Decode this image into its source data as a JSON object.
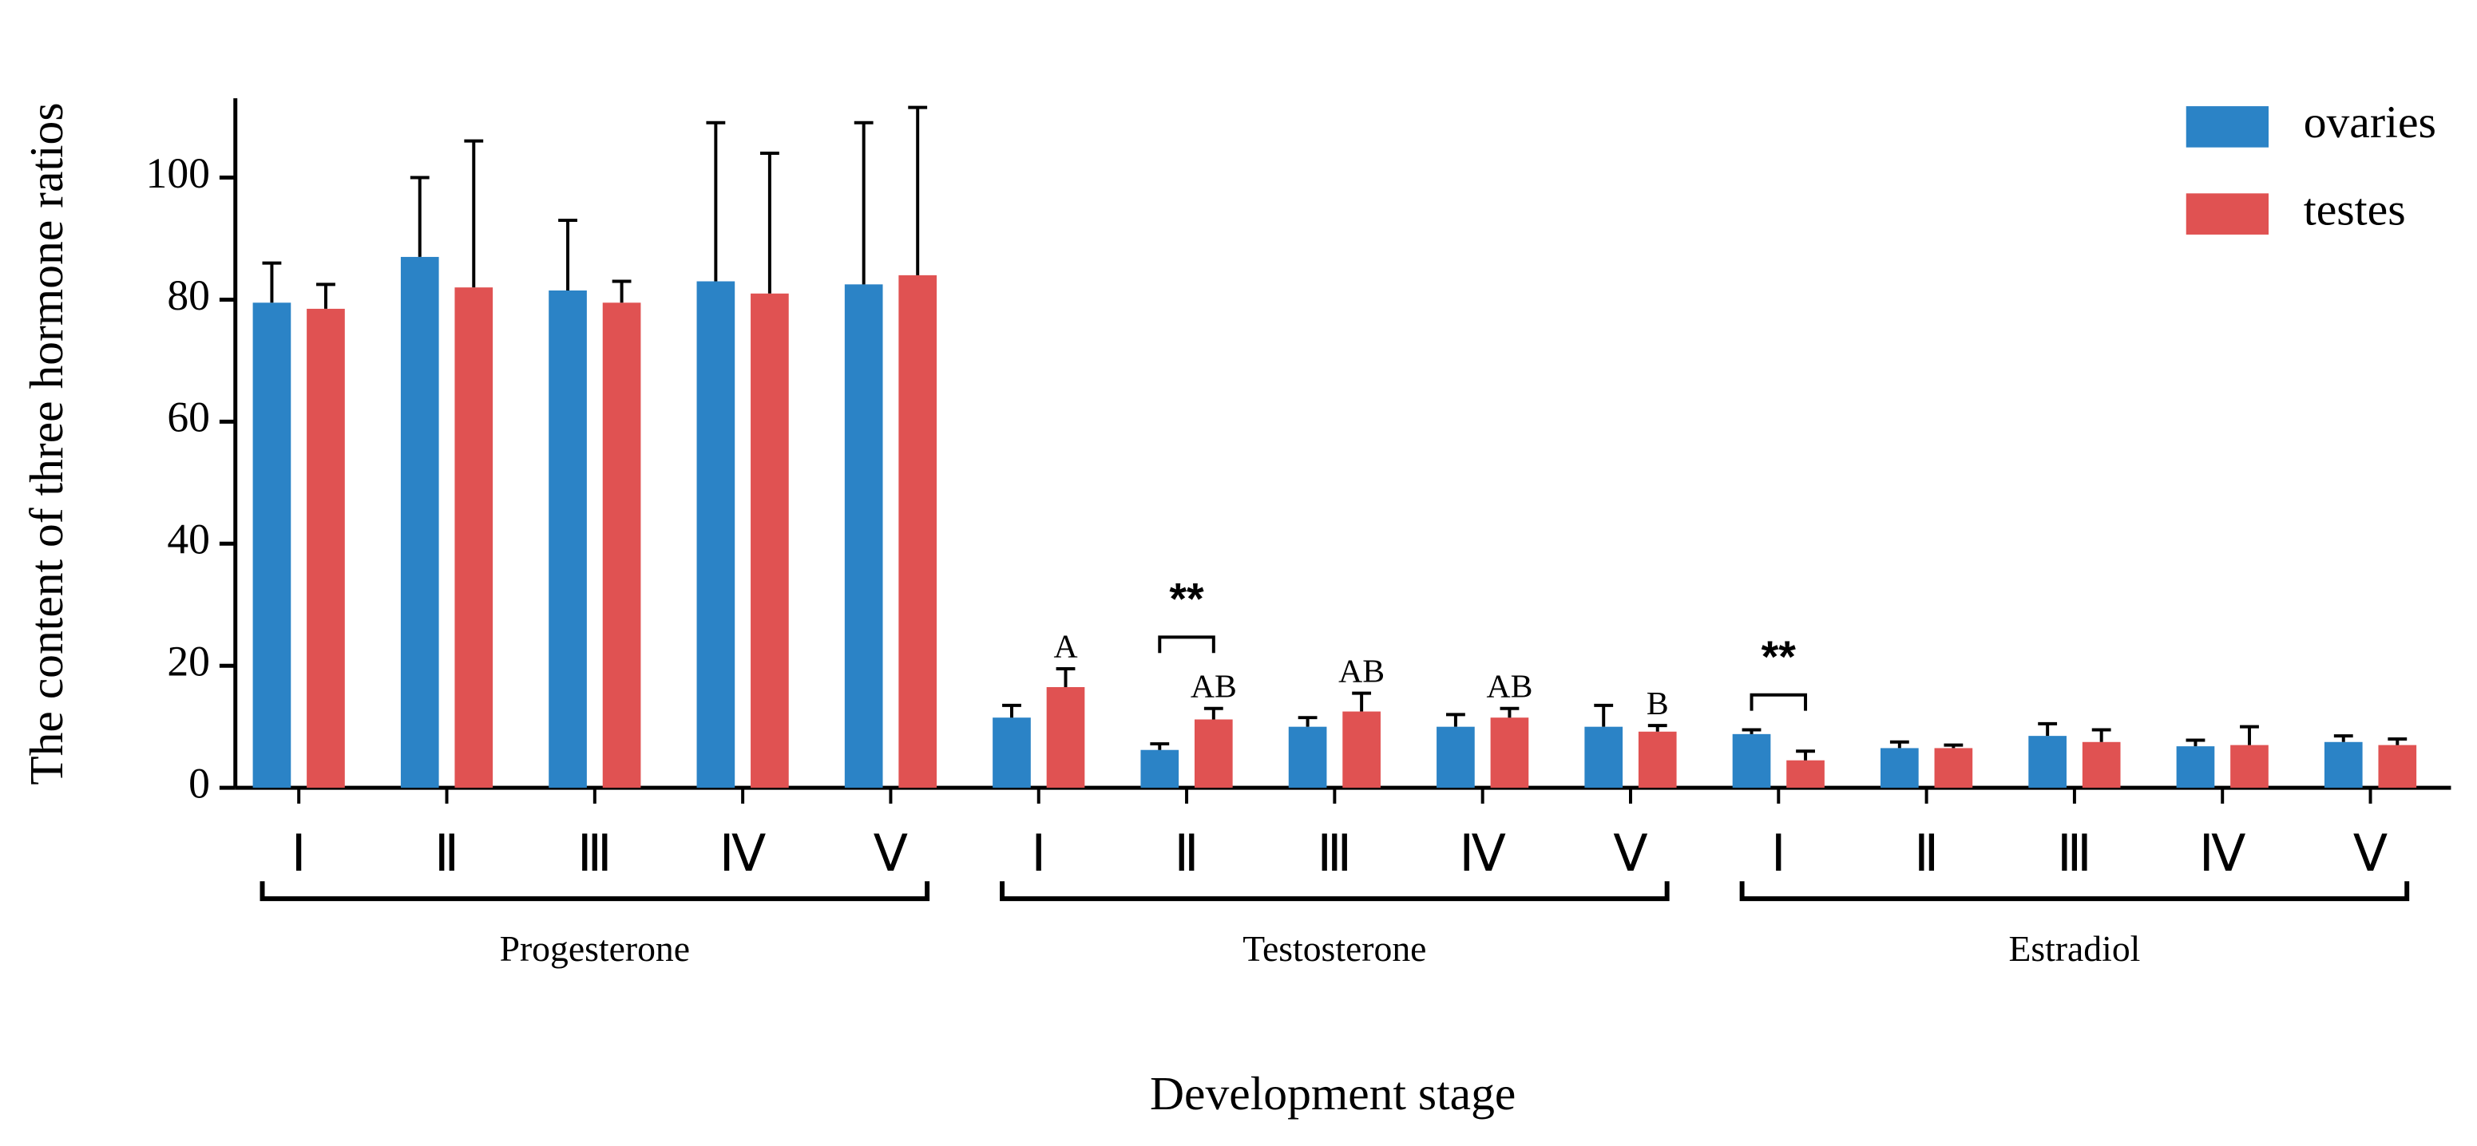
{
  "chart_data": {
    "type": "bar",
    "y_label": "The content of three hormone ratios",
    "x_label": "Development stage",
    "groups": [
      {
        "name": "Progesterone",
        "categories": [
          "Ⅰ",
          "Ⅱ",
          "Ⅲ",
          "Ⅳ",
          "Ⅴ"
        ]
      },
      {
        "name": "Testosterone",
        "categories": [
          "Ⅰ",
          "Ⅱ",
          "Ⅲ",
          "Ⅳ",
          "Ⅴ"
        ]
      },
      {
        "name": "Estradiol",
        "categories": [
          "Ⅰ",
          "Ⅱ",
          "Ⅲ",
          "Ⅳ",
          "Ⅴ"
        ]
      }
    ],
    "series": [
      {
        "name": "ovaries",
        "color": "#2b83c6",
        "values": [
          79.5,
          87,
          81.5,
          83,
          82.5,
          11.5,
          6.2,
          10,
          10,
          10,
          8.8,
          6.5,
          8.5,
          6.8,
          7.5
        ],
        "errors": [
          6.5,
          13,
          11.5,
          26,
          26.5,
          2,
          1,
          1.5,
          2,
          3.5,
          0.7,
          1,
          2,
          1,
          1
        ]
      },
      {
        "name": "testes",
        "color": "#e05252",
        "values": [
          78.5,
          82,
          79.5,
          81,
          84,
          16.5,
          11.2,
          12.5,
          11.5,
          9.2,
          4.5,
          6.5,
          7.5,
          7,
          7
        ],
        "errors": [
          4,
          24,
          3.5,
          23,
          27.5,
          3,
          1.8,
          3,
          1.5,
          1,
          1.5,
          0.5,
          2,
          3,
          1
        ],
        "labels": [
          null,
          null,
          null,
          null,
          null,
          "A",
          "AB",
          "AB",
          "AB",
          "B",
          null,
          null,
          null,
          null,
          null
        ]
      }
    ],
    "significance": [
      null,
      null,
      null,
      null,
      null,
      null,
      "**",
      null,
      null,
      null,
      "**",
      null,
      null,
      null,
      null
    ],
    "ylim": [
      0,
      113
    ],
    "yticks": [
      0,
      20,
      40,
      60,
      80,
      100
    ],
    "legend": "top-right"
  }
}
